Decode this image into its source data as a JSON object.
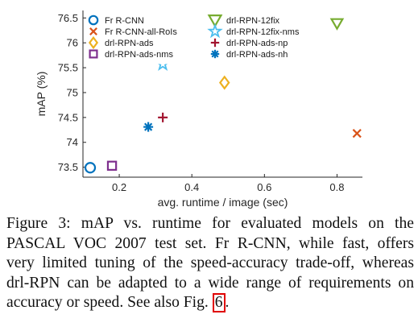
{
  "chart_data": {
    "type": "scatter",
    "title": "",
    "xlabel": "avg. runtime / image (sec)",
    "ylabel": "mAP (%)",
    "xlim": [
      0.1,
      0.87
    ],
    "ylim": [
      73.3,
      76.65
    ],
    "xticks": [
      0.2,
      0.4,
      0.6,
      0.8
    ],
    "xtick_labels": [
      "0.2",
      "0.4",
      "0.6",
      "0.8"
    ],
    "yticks": [
      73.5,
      74,
      74.5,
      75,
      75.5,
      76,
      76.5
    ],
    "ytick_labels": [
      "73.5",
      "74",
      "74.5",
      "75",
      "75.5",
      "76",
      "76.5"
    ],
    "grid": false,
    "legend_position": "top",
    "series": [
      {
        "name": "Fr R-CNN",
        "marker": "circle",
        "color": "#0072BD",
        "x": 0.12,
        "y": 73.49
      },
      {
        "name": "Fr R-CNN-all-RoIs",
        "marker": "x",
        "color": "#D95319",
        "x": 0.855,
        "y": 74.18
      },
      {
        "name": "drl-RPN-ads",
        "marker": "diamond",
        "color": "#EDB120",
        "x": 0.49,
        "y": 75.2
      },
      {
        "name": "drl-RPN-ads-nms",
        "marker": "square",
        "color": "#7E2F8E",
        "x": 0.18,
        "y": 73.53
      },
      {
        "name": "drl-RPN-12fix",
        "marker": "triangle-down",
        "color": "#77AC30",
        "x": 0.8,
        "y": 76.39
      },
      {
        "name": "drl-RPN-12fix-nms",
        "marker": "pentagram",
        "color": "#4DBEEE",
        "x": 0.32,
        "y": 75.57
      },
      {
        "name": "drl-RPN-ads-np",
        "marker": "plus",
        "color": "#A2142F",
        "x": 0.32,
        "y": 74.5
      },
      {
        "name": "drl-RPN-ads-nh",
        "marker": "asterisk",
        "color": "#0072BD",
        "x": 0.28,
        "y": 74.31
      }
    ]
  },
  "caption": {
    "line1": "Figure 3:  mAP vs.  runtime for evaluated models on the",
    "line2": "PASCAL VOC 2007 test set. Fr R-CNN, while fast, offers",
    "line3": "very limited tuning of the speed-accuracy trade-off, whereas",
    "line4": "drl-RPN can be adapted to a wide range of requirements on",
    "line5_prefix": "accuracy or speed. See also Fig.",
    "line5_ref": "6",
    "line5_suffix": "."
  },
  "colors": {
    "axis": "#262626",
    "ref_box": "#e00000"
  }
}
